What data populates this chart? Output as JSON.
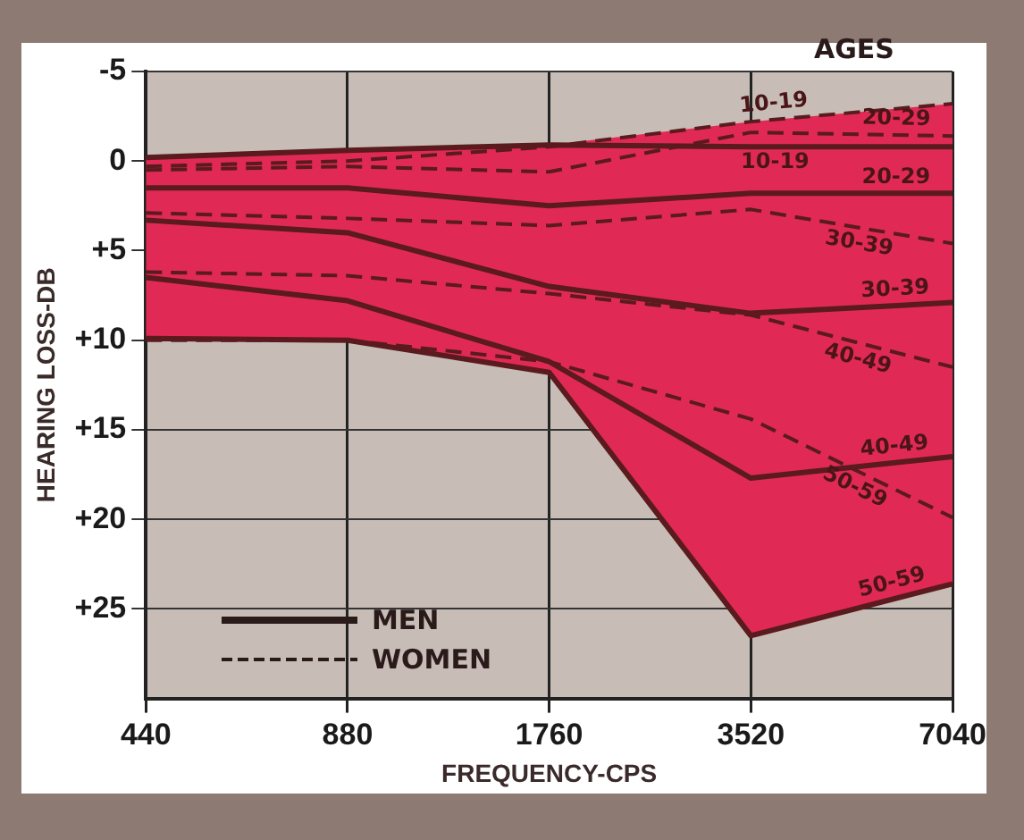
{
  "chart_data": {
    "type": "line",
    "xlabel": "FREQUENCY-CPS",
    "ylabel": "HEARING LOSS-DB",
    "legend_title": "AGES",
    "annotations": [
      "MEN",
      "WOMEN"
    ],
    "categories": [
      "440",
      "880",
      "1760",
      "3520",
      "7040"
    ],
    "ylim": [
      30,
      -5
    ],
    "yticks": [
      -5,
      0,
      {
        "value": 5,
        "label": "+5"
      },
      {
        "value": 10,
        "label": "+10"
      },
      {
        "value": 15,
        "label": "+15"
      },
      {
        "value": 20,
        "label": "+20"
      },
      {
        "value": 25,
        "label": "+25"
      }
    ],
    "grid": true,
    "marker": "none",
    "series": [
      {
        "name": "10-19",
        "color": "#5a1a1e",
        "line_style": "dashed",
        "values": [
          0.3,
          0,
          -0.8,
          -2.2,
          -3.2
        ]
      },
      {
        "name": "20-29",
        "color": "#5a1a1e",
        "line_style": "dashed",
        "values": [
          0.5,
          0.3,
          0.6,
          -1.6,
          -1.4
        ]
      },
      {
        "name": "10-19",
        "color": "#5a1a1e",
        "line_style": "solid",
        "values": [
          -0.2,
          -0.6,
          -0.9,
          -0.8,
          -0.8
        ]
      },
      {
        "name": "20-29",
        "color": "#5a1a1e",
        "line_style": "solid",
        "values": [
          1.5,
          1.5,
          2.5,
          1.8,
          1.8
        ]
      },
      {
        "name": "30-39",
        "color": "#5a1a1e",
        "line_style": "dashed",
        "values": [
          2.9,
          3.2,
          3.6,
          2.7,
          4.6
        ]
      },
      {
        "name": "30-39",
        "color": "#5a1a1e",
        "line_style": "solid",
        "values": [
          3.3,
          4.0,
          7.0,
          8.5,
          7.9
        ]
      },
      {
        "name": "40-49",
        "color": "#5a1a1e",
        "line_style": "dashed",
        "values": [
          6.2,
          6.4,
          7.4,
          8.6,
          11.5
        ]
      },
      {
        "name": "40-49",
        "color": "#5a1a1e",
        "line_style": "solid",
        "values": [
          6.5,
          7.8,
          11.2,
          17.7,
          16.5
        ]
      },
      {
        "name": "50-59",
        "color": "#5a1a1e",
        "line_style": "dashed",
        "values": [
          10,
          10,
          11.2,
          14.4,
          19.9
        ]
      },
      {
        "name": "50-59",
        "color": "#5a1a1e",
        "line_style": "solid",
        "values": [
          9.9,
          10,
          11.8,
          26.5,
          23.6
        ],
        "lower": [
          -0.2,
          -0.6,
          -0.9,
          -2.2,
          -3.2
        ],
        "upper": [
          9.9,
          10,
          11.8,
          26.5,
          23.6
        ]
      }
    ]
  }
}
